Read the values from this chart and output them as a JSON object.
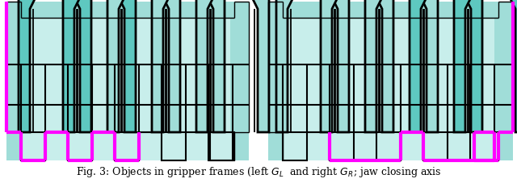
{
  "fig_width": 6.4,
  "fig_height": 2.28,
  "dpi": 100,
  "caption": "Fig. 3: Objects in gripper frames (left $G_L$  and right $G_R$; jaw closing axis",
  "caption_fontsize": 9,
  "bg_color": "#ffffff",
  "fill_teal_medium": "#5ec8c0",
  "fill_teal_light": "#a0ddd8",
  "fill_teal_lighter": "#c8eeeb",
  "outline_magenta": "#ff00ff",
  "outline_black": "#000000",
  "outline_gray": "#aaaaaa"
}
